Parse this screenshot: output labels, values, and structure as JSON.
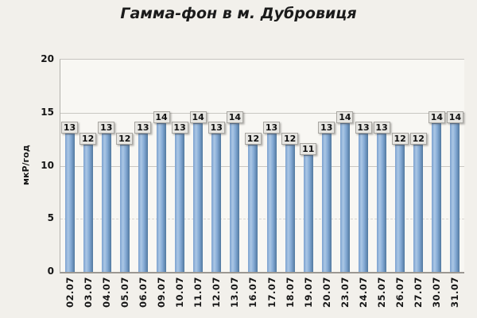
{
  "title": "Гамма-фон в м. Дубровиця",
  "y_axis_title": "мкР/год",
  "colors": {
    "background": "#f2f0eb",
    "plot_background": "#f8f7f3",
    "bar_gradient": [
      "#7ba1cf",
      "#abc7e5",
      "#82a8d3",
      "#51789f"
    ],
    "bar_edge": "#4d74a3",
    "label_box_bg": "#e7e6e2",
    "label_box_border": "#a9a7a2",
    "gridline": "#c9c7c2",
    "axis_line": "#9b9892",
    "text": "#151515"
  },
  "chart_data": {
    "type": "bar",
    "title": "Гамма-фон в м. Дубровиця",
    "xlabel": "",
    "ylabel": "мкР/год",
    "categories": [
      "02.07",
      "03.07",
      "04.07",
      "05.07",
      "06.07",
      "09.07",
      "10.07",
      "11.07",
      "12.07",
      "13.07",
      "16.07",
      "17.07",
      "18.07",
      "19.07",
      "20.07",
      "23.07",
      "24.07",
      "25.07",
      "26.07",
      "27.07",
      "30.07",
      "31.07"
    ],
    "values": [
      13,
      12,
      13,
      12,
      13,
      14,
      13,
      14,
      13,
      14,
      12,
      13,
      12,
      11,
      13,
      14,
      13,
      13,
      12,
      12,
      14,
      14
    ],
    "ylim": [
      0,
      20
    ],
    "yticks": [
      0,
      5,
      10,
      15,
      20
    ],
    "grid": "horizontal",
    "legend": "none",
    "data_labels": true
  }
}
